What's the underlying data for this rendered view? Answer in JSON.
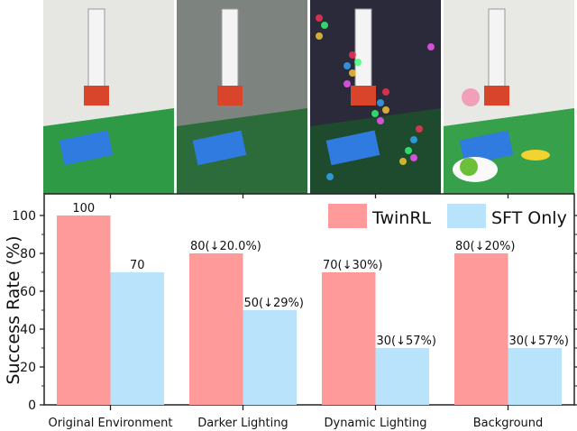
{
  "photos": [
    {
      "caption": "",
      "scene": "original"
    },
    {
      "scene": "darker"
    },
    {
      "scene": "dynamic"
    },
    {
      "scene": "background"
    }
  ],
  "chart_data": {
    "type": "bar",
    "title": "",
    "xlabel": "",
    "ylabel": "Success Rate (%)",
    "ylim": [
      0,
      110
    ],
    "yticks": [
      0,
      20,
      40,
      60,
      80,
      100
    ],
    "categories": [
      "Original Environment",
      "Darker Lighting",
      "Dynamic Lighting",
      "Background"
    ],
    "series": [
      {
        "name": "TwinRL",
        "color": "#fe9a9a",
        "values": [
          100,
          80,
          70,
          80
        ],
        "labels": [
          "100",
          "80(↓20.0%)",
          "70(↓30%)",
          "80(↓20%)"
        ]
      },
      {
        "name": "SFT Only",
        "color": "#b9e2fb",
        "values": [
          70,
          50,
          30,
          30
        ],
        "labels": [
          "70",
          "50(↓29%)",
          "30(↓57%)",
          "30(↓57%)"
        ]
      }
    ],
    "legend": "top-right",
    "grid": false
  }
}
